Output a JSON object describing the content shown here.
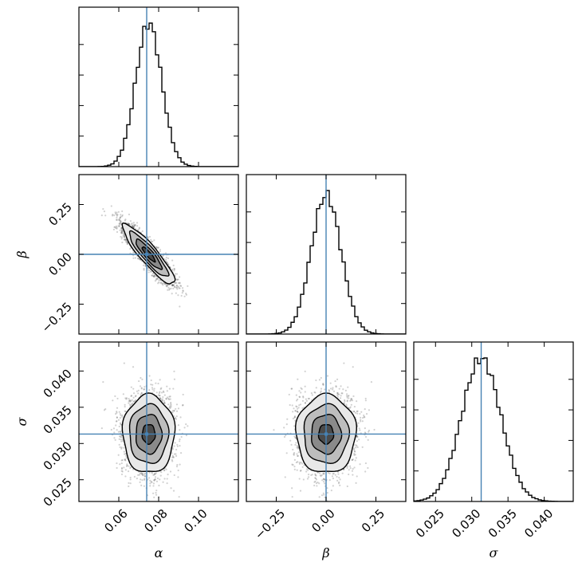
{
  "chart_data": {
    "type": "corner",
    "parameters": [
      {
        "key": "alpha",
        "symbol": "α",
        "range": [
          0.04,
          0.12
        ],
        "ticks": [
          0.06,
          0.08,
          0.1
        ],
        "tick_labels": [
          "0.06",
          "0.08",
          "0.10"
        ],
        "truth": 0.074,
        "mean": 0.075,
        "sd": 0.0065
      },
      {
        "key": "beta",
        "symbol": "β",
        "range": [
          -0.4,
          0.4
        ],
        "ticks": [
          -0.25,
          0.0,
          0.25
        ],
        "tick_labels": [
          "−0.25",
          "0.00",
          "0.25"
        ],
        "truth": 0.0,
        "mean": 0.0,
        "sd": 0.075
      },
      {
        "key": "sigma",
        "symbol": "σ",
        "range": [
          0.022,
          0.044
        ],
        "ticks": [
          0.025,
          0.03,
          0.035,
          0.04
        ],
        "tick_labels": [
          "0.025",
          "0.030",
          "0.035",
          "0.040"
        ],
        "truth": 0.0313,
        "mean": 0.0313,
        "sd": 0.0027
      }
    ],
    "correlations": {
      "alpha_beta": -0.9,
      "alpha_sigma": 0.0,
      "beta_sigma": 0.0
    },
    "histogram_bins": 50,
    "scatter_samples": 2500,
    "contour_levels_sigma": [
      0.5,
      1.0,
      1.5,
      2.0
    ],
    "truth_color": "#4682b4",
    "line_color": "#000000"
  }
}
